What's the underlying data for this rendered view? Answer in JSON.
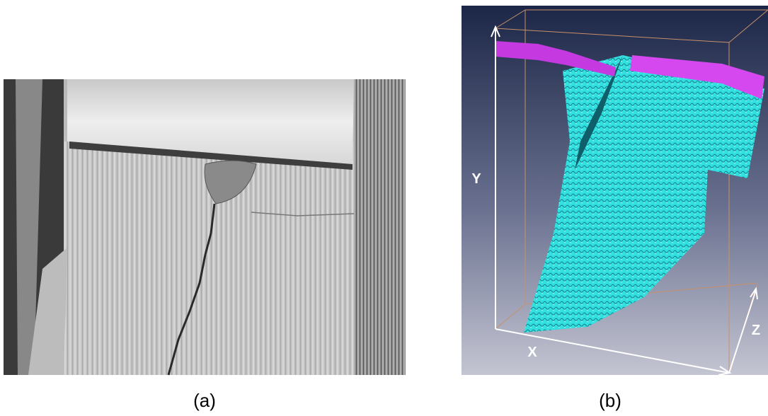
{
  "panels": [
    {
      "caption": "(a)"
    },
    {
      "caption": "(b)",
      "axes": {
        "x": "X",
        "y": "Y",
        "z": "Z"
      }
    }
  ]
}
